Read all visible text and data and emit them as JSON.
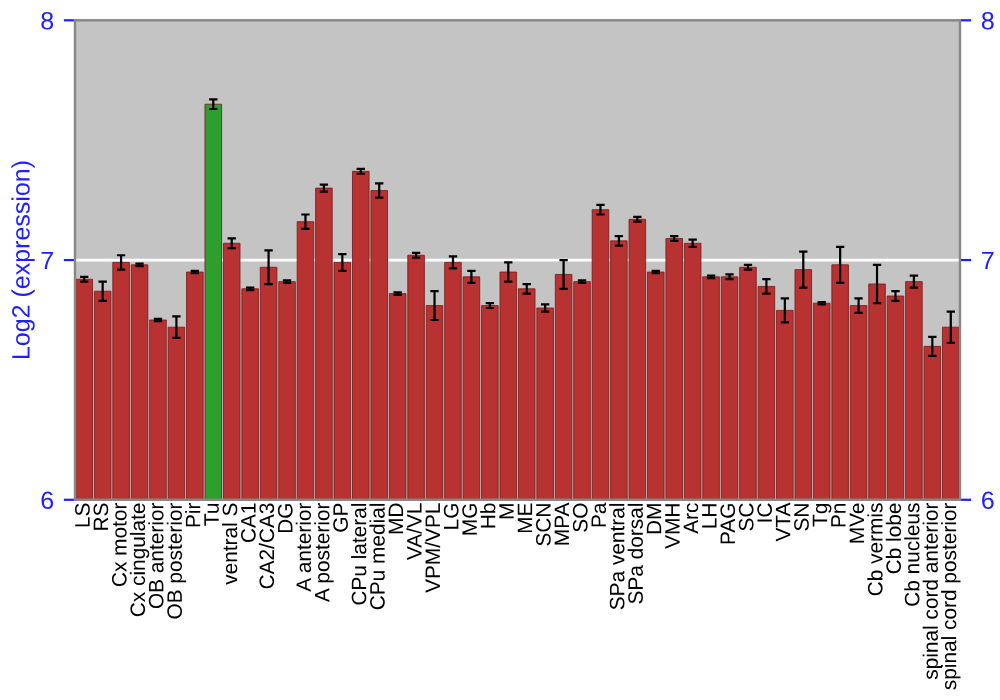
{
  "chart_data": {
    "type": "bar",
    "ylabel": "Log2 (expression)",
    "categories": [
      "LS",
      "RS",
      "Cx motor",
      "Cx cingulate",
      "OB anterior",
      "OB posterior",
      "Pir",
      "Tu",
      "ventral S",
      "CA1",
      "CA2/CA3",
      "DG",
      "A anterior",
      "A posterior",
      "GP",
      "CPu lateral",
      "CPu medial",
      "MD",
      "VA/VL",
      "VPM/VPL",
      "LG",
      "MG",
      "Hb",
      "M",
      "ME",
      "SCN",
      "MPA",
      "SO",
      "Pa",
      "SPa ventral",
      "SPa dorsal",
      "DM",
      "VMH",
      "Arc",
      "LH",
      "PAG",
      "SC",
      "IC",
      "VTA",
      "SN",
      "Tg",
      "Pn",
      "MVe",
      "Cb vermis",
      "Cb lobe",
      "Cb nucleus",
      "spinal cord anterior",
      "spinal cord posterior"
    ],
    "values": [
      6.92,
      6.87,
      6.99,
      6.98,
      6.75,
      6.72,
      6.95,
      7.65,
      7.07,
      6.88,
      6.97,
      6.91,
      7.16,
      7.3,
      6.99,
      7.37,
      7.29,
      6.86,
      7.02,
      6.81,
      6.99,
      6.93,
      6.81,
      6.95,
      6.88,
      6.8,
      6.94,
      6.91,
      7.21,
      7.08,
      7.17,
      6.95,
      7.09,
      7.07,
      6.93,
      6.93,
      6.97,
      6.89,
      6.79,
      6.96,
      6.82,
      6.98,
      6.81,
      6.9,
      6.85,
      6.91,
      6.64,
      6.72
    ],
    "errors": [
      0.01,
      0.04,
      0.03,
      0.005,
      0.005,
      0.045,
      0.005,
      0.02,
      0.02,
      0.005,
      0.07,
      0.005,
      0.03,
      0.015,
      0.035,
      0.01,
      0.03,
      0.005,
      0.01,
      0.06,
      0.025,
      0.025,
      0.01,
      0.04,
      0.02,
      0.015,
      0.06,
      0.005,
      0.02,
      0.02,
      0.01,
      0.005,
      0.01,
      0.015,
      0.005,
      0.01,
      0.01,
      0.03,
      0.05,
      0.075,
      0.005,
      0.075,
      0.03,
      0.08,
      0.02,
      0.025,
      0.04,
      0.065
    ],
    "colors": [
      "#b83232",
      "#b83232",
      "#b83232",
      "#b83232",
      "#b83232",
      "#b83232",
      "#b83232",
      "#2e9e2e",
      "#b83232",
      "#b83232",
      "#b83232",
      "#b83232",
      "#b83232",
      "#b83232",
      "#b83232",
      "#b83232",
      "#b83232",
      "#b83232",
      "#b83232",
      "#b83232",
      "#b83232",
      "#b83232",
      "#b83232",
      "#b83232",
      "#b83232",
      "#b83232",
      "#b83232",
      "#b83232",
      "#b83232",
      "#b83232",
      "#b83232",
      "#b83232",
      "#b83232",
      "#b83232",
      "#b83232",
      "#b83232",
      "#b83232",
      "#b83232",
      "#b83232",
      "#b83232",
      "#b83232",
      "#b83232",
      "#b83232",
      "#b83232",
      "#b83232",
      "#b83232",
      "#b83232",
      "#b83232"
    ],
    "ylim": [
      6,
      8
    ],
    "yticks": [
      6,
      7,
      8
    ],
    "y2lim": [
      6,
      8
    ],
    "y2ticks": [
      6,
      7,
      8
    ],
    "grid": "y",
    "legend": false
  }
}
